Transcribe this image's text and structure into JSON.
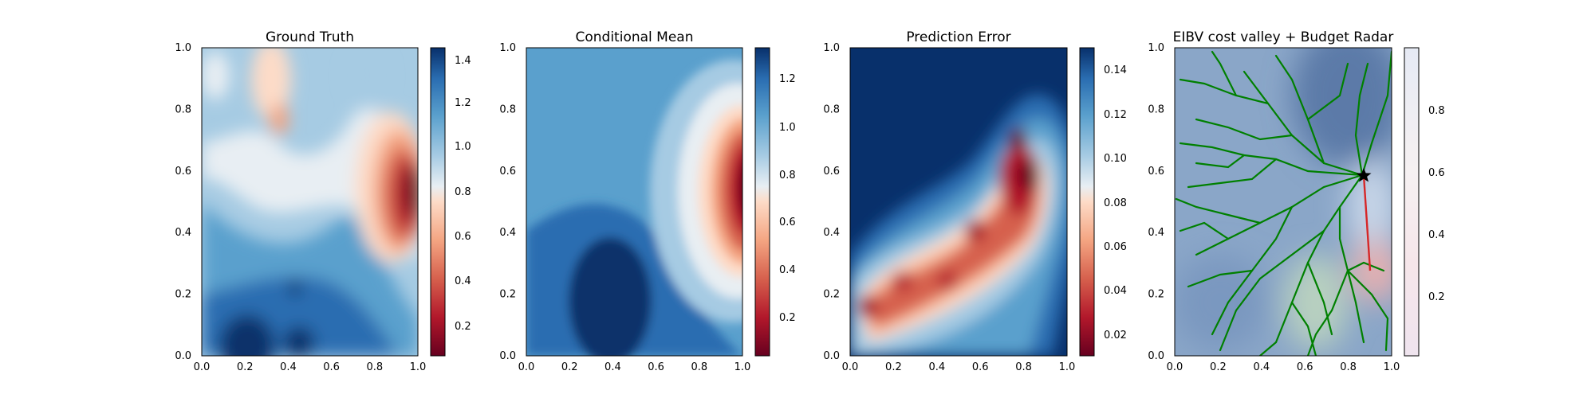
{
  "chart_data": [
    {
      "type": "heatmap",
      "title": "Ground Truth",
      "xlim": [
        0,
        1
      ],
      "ylim": [
        0,
        1
      ],
      "xticks": [
        "0.0",
        "0.2",
        "0.4",
        "0.6",
        "0.8",
        "1.0"
      ],
      "yticks": [
        "0.0",
        "0.2",
        "0.4",
        "0.6",
        "0.8",
        "1.0"
      ],
      "colormap": "RdBu",
      "colorbar": {
        "range": [
          0.05,
          1.5
        ],
        "ticks": [
          "0.2",
          "0.4",
          "0.6",
          "0.8",
          "1.0",
          "1.2",
          "1.4"
        ]
      },
      "features": [
        {
          "x": 0.9,
          "y": 0.5,
          "value": 0.1
        },
        {
          "x": 0.32,
          "y": 0.82,
          "value": 0.6
        },
        {
          "x": 0.2,
          "y": 0.0,
          "value": 1.45
        },
        {
          "x": 0.45,
          "y": 0.23,
          "value": 1.45
        },
        {
          "x": 0.45,
          "y": 0.12,
          "value": 1.2
        },
        {
          "x": 0.05,
          "y": 0.9,
          "value": 0.95
        },
        {
          "x": 0.7,
          "y": 0.9,
          "value": 0.95
        }
      ]
    },
    {
      "type": "heatmap",
      "title": "Conditional Mean",
      "xlim": [
        0,
        1
      ],
      "ylim": [
        0,
        1
      ],
      "xticks": [
        "0.0",
        "0.2",
        "0.4",
        "0.6",
        "0.8",
        "1.0"
      ],
      "yticks": [
        "0.0",
        "0.2",
        "0.4",
        "0.6",
        "0.8",
        "1.0"
      ],
      "colormap": "RdBu",
      "colorbar": {
        "range": [
          0.05,
          1.35
        ],
        "ticks": [
          "0.2",
          "0.4",
          "0.6",
          "0.8",
          "1.0",
          "1.2"
        ]
      },
      "features": [
        {
          "x": 0.95,
          "y": 0.52,
          "value": 0.1
        },
        {
          "x": 0.4,
          "y": 0.2,
          "value": 1.3
        },
        {
          "x": 0.3,
          "y": 0.8,
          "value": 1.05
        }
      ]
    },
    {
      "type": "heatmap",
      "title": "Prediction Error",
      "xlim": [
        0,
        1
      ],
      "ylim": [
        0,
        1
      ],
      "xticks": [
        "0.0",
        "0.2",
        "0.4",
        "0.6",
        "0.8",
        "1.0"
      ],
      "yticks": [
        "0.0",
        "0.2",
        "0.4",
        "0.6",
        "0.8",
        "1.0"
      ],
      "colormap": "RdBu",
      "colorbar": {
        "range": [
          0.01,
          0.15
        ],
        "ticks": [
          "0.02",
          "0.04",
          "0.06",
          "0.08",
          "0.10",
          "0.12",
          "0.14"
        ]
      },
      "features": [
        {
          "x": 0.08,
          "y": 0.16,
          "value": 0.015
        },
        {
          "x": 0.24,
          "y": 0.24,
          "value": 0.02
        },
        {
          "x": 0.45,
          "y": 0.25,
          "value": 0.02
        },
        {
          "x": 0.58,
          "y": 0.41,
          "value": 0.02
        },
        {
          "x": 0.78,
          "y": 0.68,
          "value": 0.015
        },
        {
          "x": 0.84,
          "y": 0.58,
          "value": 0.015
        },
        {
          "x": 0.15,
          "y": 0.85,
          "value": 0.145
        },
        {
          "x": 0.9,
          "y": 0.1,
          "value": 0.145
        }
      ]
    },
    {
      "type": "heatmap",
      "title": "EIBV cost valley + Budget Radar",
      "xlim": [
        0,
        1
      ],
      "ylim": [
        0,
        1
      ],
      "xticks": [
        "0.0",
        "0.2",
        "0.4",
        "0.6",
        "0.8",
        "1.0"
      ],
      "yticks": [
        "0.0",
        "0.2",
        "0.4",
        "0.6",
        "0.8",
        "1.0"
      ],
      "colormap": "RdBu",
      "colorbar": {
        "range": [
          0,
          1
        ],
        "ticks": [
          "0.2",
          "0.4",
          "0.6",
          "0.8"
        ]
      },
      "current_location": {
        "x": 0.87,
        "y": 0.59
      },
      "selected_path": [
        [
          0.87,
          0.59
        ],
        [
          0.9,
          0.28
        ]
      ],
      "tree_color": "#008000",
      "path_color": "#d62728"
    }
  ]
}
